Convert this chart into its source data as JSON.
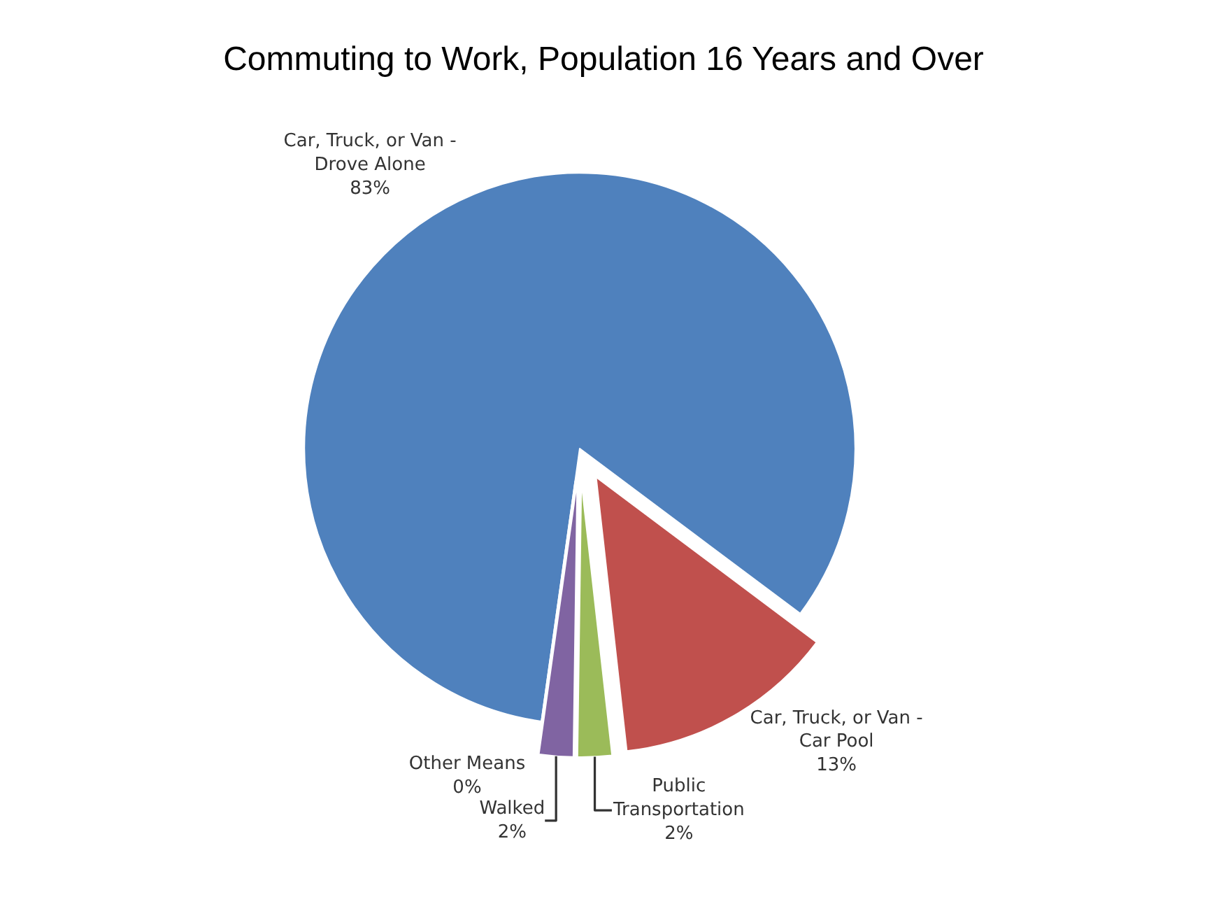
{
  "chart_data": {
    "type": "pie",
    "title": "Commuting to Work, Population 16 Years and Over",
    "categories": [
      "Car, Truck, or Van -\nDrove Alone",
      "Car, Truck, or Van -\nCar Pool",
      "Public\nTransportation",
      "Walked",
      "Other Means"
    ],
    "values": [
      83,
      13,
      2,
      2,
      0
    ],
    "colors": [
      "#4f81bd",
      "#c0504d",
      "#9bbb59",
      "#8064a2",
      "#4bacc6"
    ],
    "value_labels": [
      "83%",
      "13%",
      "2%",
      "2%",
      "0%"
    ],
    "legend": false
  }
}
